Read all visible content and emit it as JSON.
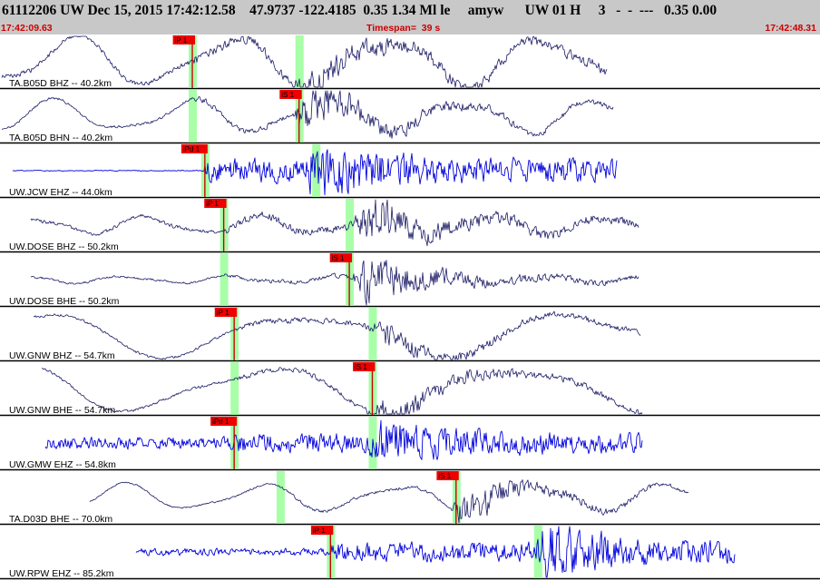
{
  "header": {
    "title": "61112206 UW Dec 15, 2015 17:42:12.58    47.9737 -122.4185  0.35 1.34 Ml le     amyw      UW 01 H     3   -  -  ---   0.35 0.00",
    "start_time": "17:42:09.63",
    "timespan": "Timespan=  39 s",
    "end_time": "17:42:48.31"
  },
  "colors": {
    "header_bg": "#c8c8c8",
    "time_text": "#cc0000",
    "trace_broadband": "#1a1a66",
    "trace_shortperiod": "#0000dd",
    "pick_marker": "#ee0000",
    "pick_line": "#cc0000",
    "phase_window": "#99ff99",
    "separator": "#000000"
  },
  "chart_data": {
    "type": "line",
    "title": "61112206 UW Dec 15, 2015 17:42:12.58",
    "x_label": "Timespan=  39 s",
    "x_range": [
      "17:42:09.63",
      "17:42:48.31"
    ],
    "x_range_seconds": [
      0,
      39
    ],
    "traces": [
      {
        "label": "TA.B05D BHZ -- 40.2km",
        "color": "#1a1a66",
        "kind": "broadband",
        "data_start": 0.0,
        "data_end": 28.9,
        "p_pick": 9.1,
        "s_pick": 14.2,
        "windows": [
          9.1,
          14.2
        ],
        "picks": [
          {
            "text": "iP 1",
            "time": 9.1
          }
        ],
        "signal": {
          "lp_amp": 0.85,
          "hf_amp": 0.18,
          "lp_period": 7.5,
          "burst_at": 14.2,
          "burst_amp": 0.5
        }
      },
      {
        "label": "TA.B05D BHN -- 40.2km",
        "color": "#1a1a66",
        "kind": "broadband",
        "data_start": 0.0,
        "data_end": 29.2,
        "p_pick": 9.1,
        "s_pick": 14.2,
        "windows": [
          9.1,
          14.2
        ],
        "picks": [
          {
            "text": "iS 1",
            "time": 14.2
          }
        ],
        "signal": {
          "lp_amp": 0.55,
          "hf_amp": 0.1,
          "lp_period": 6.5,
          "burst_at": 14.2,
          "burst_amp": 0.75
        }
      },
      {
        "label": "UW.JCW EHZ -- 44.0km",
        "color": "#0000dd",
        "kind": "shortperiod",
        "data_start": 0.5,
        "data_end": 29.4,
        "p_pick": 9.7,
        "s_pick": 15.0,
        "windows": [
          9.7,
          15.0
        ],
        "picks": [
          {
            "text": "iPd 1",
            "time": 9.7
          }
        ],
        "signal": {
          "lp_amp": 0.0,
          "hf_amp": 0.42,
          "lp_period": 5,
          "burst_at": 14.5,
          "burst_amp": 0.75,
          "noise_pre": 0.015
        }
      },
      {
        "label": "UW.DOSE BHZ -- 50.2km",
        "color": "#1a1a66",
        "kind": "broadband",
        "data_start": 1.4,
        "data_end": 30.4,
        "p_pick": 10.6,
        "s_pick": 16.6,
        "windows": [
          10.6,
          16.6
        ],
        "picks": [
          {
            "text": "iP 1",
            "time": 10.6
          }
        ],
        "signal": {
          "lp_amp": 0.3,
          "hf_amp": 0.14,
          "lp_period": 5.5,
          "burst_at": 17.0,
          "burst_amp": 0.7
        }
      },
      {
        "label": "UW.DOSE BHE -- 50.2km",
        "color": "#1a1a66",
        "kind": "broadband",
        "data_start": 1.4,
        "data_end": 30.4,
        "p_pick": 10.6,
        "s_pick": 16.6,
        "windows": [
          10.6,
          16.6
        ],
        "picks": [
          {
            "text": "iS 1",
            "time": 16.6
          }
        ],
        "signal": {
          "lp_amp": 0.12,
          "hf_amp": 0.08,
          "lp_period": 5,
          "burst_at": 17.0,
          "burst_amp": 0.85
        }
      },
      {
        "label": "UW.GNW BHZ -- 54.7km",
        "color": "#1a1a66",
        "kind": "broadband",
        "data_start": 1.5,
        "data_end": 30.5,
        "p_pick": 11.1,
        "s_pick": 17.7,
        "windows": [
          11.1,
          17.7
        ],
        "picks": [
          {
            "text": "iP 1",
            "time": 11.1
          }
        ],
        "signal": {
          "lp_amp": 0.75,
          "hf_amp": 0.1,
          "lp_period": 13,
          "burst_at": 17.8,
          "burst_amp": 0.35
        }
      },
      {
        "label": "UW.GNW BHE -- 54.7km",
        "color": "#1a1a66",
        "kind": "broadband",
        "data_start": 1.9,
        "data_end": 30.6,
        "p_pick": 11.1,
        "s_pick": 17.7,
        "windows": [
          11.1,
          17.7
        ],
        "picks": [
          {
            "text": "iS 1",
            "time": 17.7
          }
        ],
        "signal": {
          "lp_amp": 0.8,
          "hf_amp": 0.1,
          "lp_period": 12,
          "burst_at": 17.7,
          "burst_amp": 0.5
        }
      },
      {
        "label": "UW.GMW EHZ -- 54.8km",
        "color": "#0000dd",
        "kind": "shortperiod",
        "data_start": 2.1,
        "data_end": 30.6,
        "p_pick": 11.1,
        "s_pick": 17.7,
        "windows": [
          11.1,
          17.7
        ],
        "picks": [
          {
            "text": "iPd 1",
            "time": 11.1
          }
        ],
        "signal": {
          "lp_amp": 0.0,
          "hf_amp": 0.35,
          "lp_period": 5,
          "burst_at": 17.7,
          "burst_amp": 0.55,
          "noise_pre": 0.22
        }
      },
      {
        "label": "TA.D03D BHE -- 70.0km",
        "color": "#1a1a66",
        "kind": "broadband",
        "data_start": 4.2,
        "data_end": 32.8,
        "p_pick": 13.3,
        "s_pick": 21.7,
        "windows": [
          13.3,
          21.7
        ],
        "picks": [
          {
            "text": "iS 1",
            "time": 21.7
          }
        ],
        "signal": {
          "lp_amp": 0.45,
          "hf_amp": 0.06,
          "lp_period": 6.5,
          "burst_at": 21.7,
          "burst_amp": 0.6
        }
      },
      {
        "label": "UW.RPW EHZ -- 85.2km",
        "color": "#0000dd",
        "kind": "shortperiod",
        "data_start": 6.4,
        "data_end": 35.0,
        "p_pick": 15.7,
        "s_pick": 25.6,
        "windows": [
          15.7,
          25.6
        ],
        "picks": [
          {
            "text": "iP 1",
            "time": 15.7
          }
        ],
        "signal": {
          "lp_amp": 0.0,
          "hf_amp": 0.35,
          "lp_period": 5,
          "burst_at": 25.7,
          "burst_amp": 0.85,
          "noise_pre": 0.13
        }
      }
    ]
  }
}
